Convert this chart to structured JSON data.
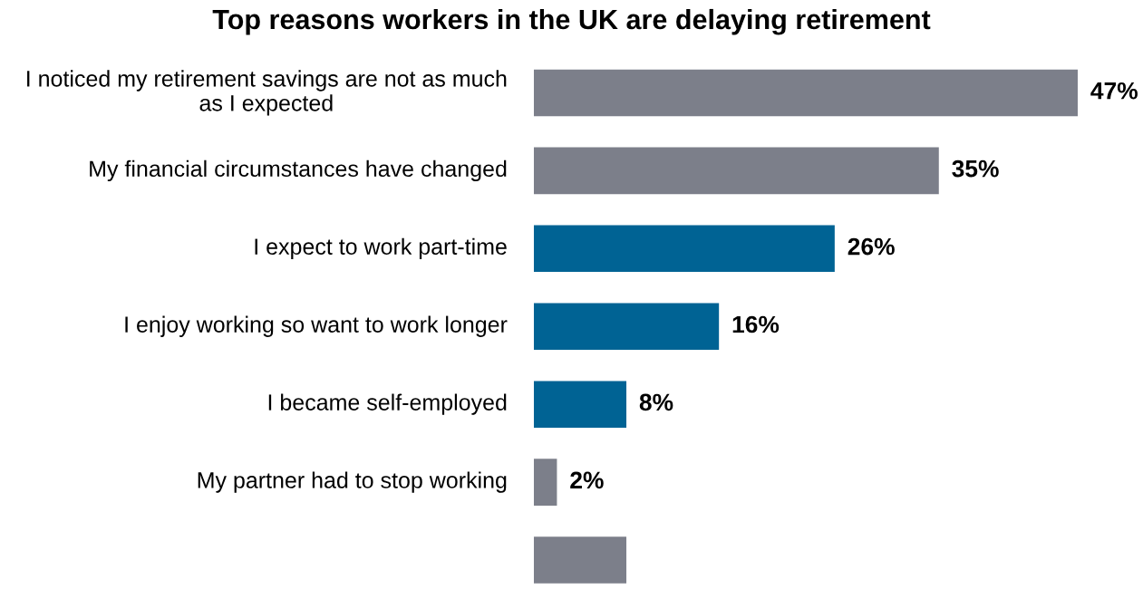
{
  "chart_data": {
    "type": "bar",
    "orientation": "horizontal",
    "title": "Top reasons workers in the UK are delaying retirement",
    "categories": [
      "I noticed my retirement savings are not as much as I expected",
      "My financial circumstances have changed",
      "I expect to work part-time",
      "I enjoy working so want to work longer",
      "I became self-employed",
      "My partner had to stop working",
      null
    ],
    "values": [
      47,
      35,
      26,
      16,
      8,
      2,
      8
    ],
    "colors": [
      "#7c7f8a",
      "#7c7f8a",
      "#006394",
      "#006394",
      "#006394",
      "#7c7f8a",
      "#7c7f8a"
    ],
    "value_labels": [
      "47%",
      "35%",
      "26%",
      "16%",
      "8%",
      "2%",
      null
    ],
    "tick_labels": "y",
    "grid": false,
    "legend": false
  }
}
